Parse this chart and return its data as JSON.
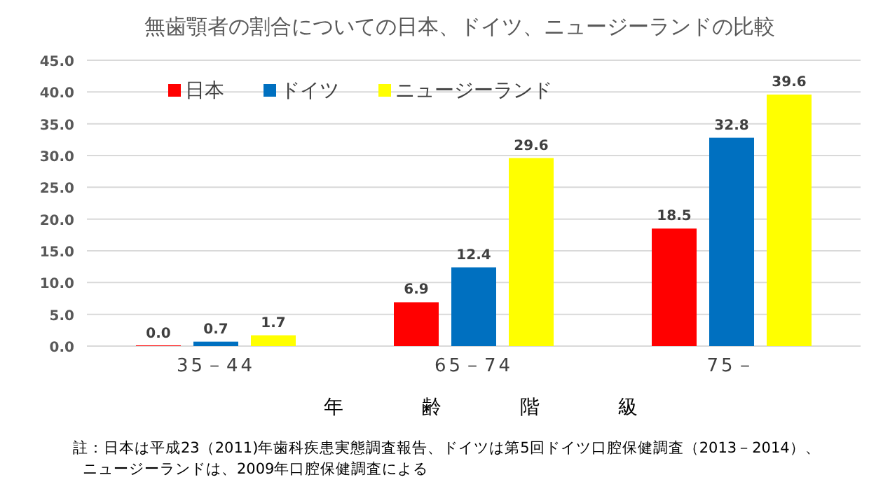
{
  "chart_data": {
    "type": "bar",
    "title": "無歯顎者の割合についての日本、ドイツ、ニュージーランドの比較",
    "xlabel": "年　　　　齢　　　　階　　　　級",
    "categories": [
      "35－44",
      "65－74",
      "75－"
    ],
    "series": [
      {
        "name": "日本",
        "color": "#ff0000",
        "values": [
          0.0,
          6.9,
          18.5
        ],
        "value_labels": [
          "0.0",
          "6.9",
          "18.5"
        ]
      },
      {
        "name": "ドイツ",
        "color": "#0070c0",
        "values": [
          0.7,
          12.4,
          32.8
        ],
        "value_labels": [
          "0.7",
          "12.4",
          "32.8"
        ]
      },
      {
        "name": "ニュージーランド",
        "color": "#ffff00",
        "values": [
          1.7,
          29.6,
          39.6
        ],
        "value_labels": [
          "1.7",
          "29.6",
          "39.6"
        ]
      }
    ],
    "ylim": [
      0,
      45
    ],
    "yticks": [
      {
        "value": 0,
        "label": "0.0"
      },
      {
        "value": 5,
        "label": "5.0"
      },
      {
        "value": 10,
        "label": "10.0"
      },
      {
        "value": 15,
        "label": "15.0"
      },
      {
        "value": 20,
        "label": "20.0"
      },
      {
        "value": 25,
        "label": "25.0"
      },
      {
        "value": 30,
        "label": "30.0"
      },
      {
        "value": 35,
        "label": "35.0"
      },
      {
        "value": 40,
        "label": "40.0"
      },
      {
        "value": 45,
        "label": "45.0"
      }
    ],
    "grid": "y",
    "legend": "top left",
    "annotations": [
      "註：日本は平成23（2011)年歯科疾患実態調査報告、ドイツは第5回ドイツ口腔保健調査（2013－2014）、",
      "ニュージーランドは、2009年口腔保健調査による"
    ]
  }
}
